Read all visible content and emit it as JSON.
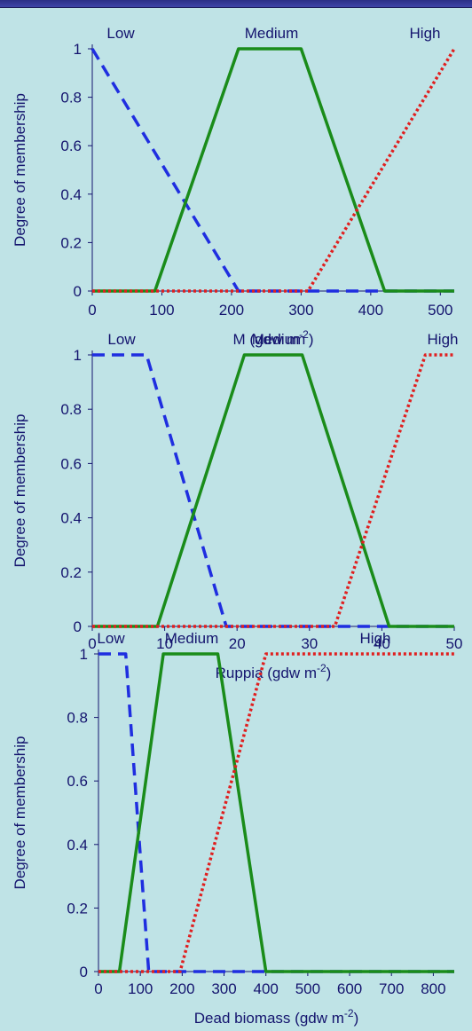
{
  "chart_data": [
    {
      "type": "line",
      "ylabel": "Degree of membership",
      "xlabel": "M (gdw m-2)",
      "xlabel_main": "M (gdw m",
      "xlabel_sup": "-2",
      "xlabel_close": ")",
      "xlim": [
        0,
        520
      ],
      "ylim": [
        0,
        1
      ],
      "x_ticks": [
        "0",
        "100",
        "200",
        "300",
        "400",
        "500"
      ],
      "x_tick_values": [
        0,
        100,
        200,
        300,
        400,
        500
      ],
      "y_ticks": [
        "0",
        "0.2",
        "0.4",
        "0.6",
        "0.8",
        "1"
      ],
      "y_tick_values": [
        0,
        0.2,
        0.4,
        0.6,
        0.8,
        1
      ],
      "level_labels": [
        "Low",
        "Medium",
        "High"
      ],
      "series": [
        {
          "name": "Low",
          "color": "#1f2ee0",
          "style": "dashed",
          "x": [
            0,
            210,
            520
          ],
          "y": [
            1,
            0,
            0
          ]
        },
        {
          "name": "Medium",
          "color": "#1a8c1a",
          "style": "solid",
          "x": [
            0,
            90,
            210,
            300,
            420,
            520
          ],
          "y": [
            0,
            0,
            1,
            1,
            0,
            0
          ]
        },
        {
          "name": "High",
          "color": "#e01f1f",
          "style": "dotted",
          "x": [
            0,
            310,
            520
          ],
          "y": [
            0,
            0,
            1
          ]
        }
      ]
    },
    {
      "type": "line",
      "ylabel": "Degree of membership",
      "xlabel": "Ruppia (gdw m-2)",
      "xlabel_main": "Ruppia (gdw m",
      "xlabel_sup": "-2",
      "xlabel_close": ")",
      "xlim": [
        0,
        50
      ],
      "ylim": [
        0,
        1
      ],
      "x_ticks": [
        "0",
        "10",
        "20",
        "30",
        "40",
        "50"
      ],
      "x_tick_values": [
        0,
        10,
        20,
        30,
        40,
        50
      ],
      "y_ticks": [
        "0",
        "0.2",
        "0.4",
        "0.6",
        "0.8",
        "1"
      ],
      "y_tick_values": [
        0,
        0.2,
        0.4,
        0.6,
        0.8,
        1
      ],
      "level_labels": [
        "Low",
        "Medium",
        "High"
      ],
      "series": [
        {
          "name": "Low",
          "color": "#1f2ee0",
          "style": "dashed",
          "x": [
            0,
            7.5,
            18.5,
            50
          ],
          "y": [
            1,
            1,
            0,
            0
          ]
        },
        {
          "name": "Medium",
          "color": "#1a8c1a",
          "style": "solid",
          "x": [
            0,
            9,
            21,
            29,
            41,
            50
          ],
          "y": [
            0,
            0,
            1,
            1,
            0,
            0
          ]
        },
        {
          "name": "High",
          "color": "#e01f1f",
          "style": "dotted",
          "x": [
            0,
            33.5,
            46,
            50
          ],
          "y": [
            0,
            0,
            1,
            1
          ]
        }
      ]
    },
    {
      "type": "line",
      "ylabel": "Degree of membership",
      "xlabel": "Dead biomass (gdw m-2)",
      "xlabel_main": "Dead biomass (gdw m",
      "xlabel_sup": "-2",
      "xlabel_close": ")",
      "xlim": [
        0,
        850
      ],
      "ylim": [
        0,
        1
      ],
      "x_ticks": [
        "0",
        "100",
        "200",
        "300",
        "400",
        "500",
        "600",
        "700",
        "800"
      ],
      "x_tick_values": [
        0,
        100,
        200,
        300,
        400,
        500,
        600,
        700,
        800
      ],
      "y_ticks": [
        "0",
        "0.2",
        "0.4",
        "0.6",
        "0.8",
        "1"
      ],
      "y_tick_values": [
        0,
        0.2,
        0.4,
        0.6,
        0.8,
        1
      ],
      "level_labels": [
        "Low",
        "Medium",
        "High"
      ],
      "series": [
        {
          "name": "Low",
          "color": "#1f2ee0",
          "style": "dashed",
          "x": [
            0,
            65,
            120,
            850
          ],
          "y": [
            1,
            1,
            0,
            0
          ]
        },
        {
          "name": "Medium",
          "color": "#1a8c1a",
          "style": "solid",
          "x": [
            0,
            50,
            155,
            285,
            400,
            850
          ],
          "y": [
            0,
            0,
            1,
            1,
            0,
            0
          ]
        },
        {
          "name": "High",
          "color": "#e01f1f",
          "style": "dotted",
          "x": [
            0,
            195,
            400,
            850
          ],
          "y": [
            0,
            0,
            1,
            1
          ]
        }
      ]
    }
  ]
}
